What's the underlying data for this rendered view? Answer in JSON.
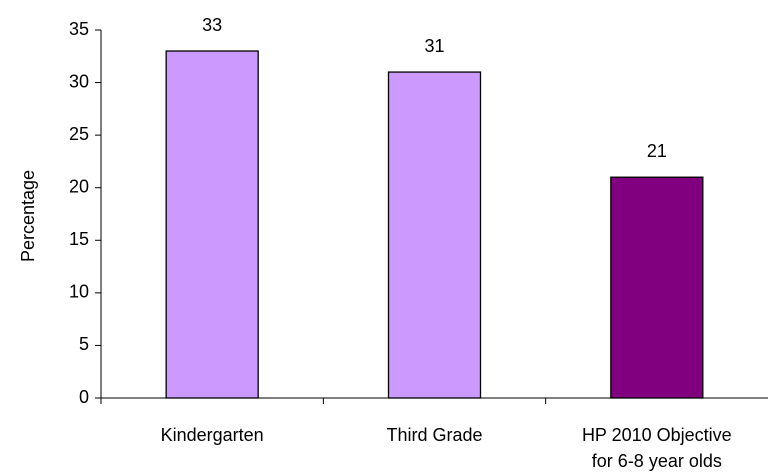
{
  "chart_data": {
    "type": "bar",
    "title": "",
    "xlabel": "",
    "ylabel": "Percentage",
    "ylim": [
      0,
      35
    ],
    "yticks": [
      0,
      5,
      10,
      15,
      20,
      25,
      30,
      35
    ],
    "grid": false,
    "legend": "none",
    "categories": [
      [
        "Kindergarten"
      ],
      [
        "Third Grade"
      ],
      [
        "HP 2010 Objective",
        "for 6-8 year olds"
      ]
    ],
    "values": [
      33,
      31,
      21
    ],
    "data_labels": [
      "33",
      "31",
      "21"
    ],
    "bar_colors": [
      "#cc99ff",
      "#cc99ff",
      "#800080"
    ],
    "bar_edge_color": "#000000"
  }
}
